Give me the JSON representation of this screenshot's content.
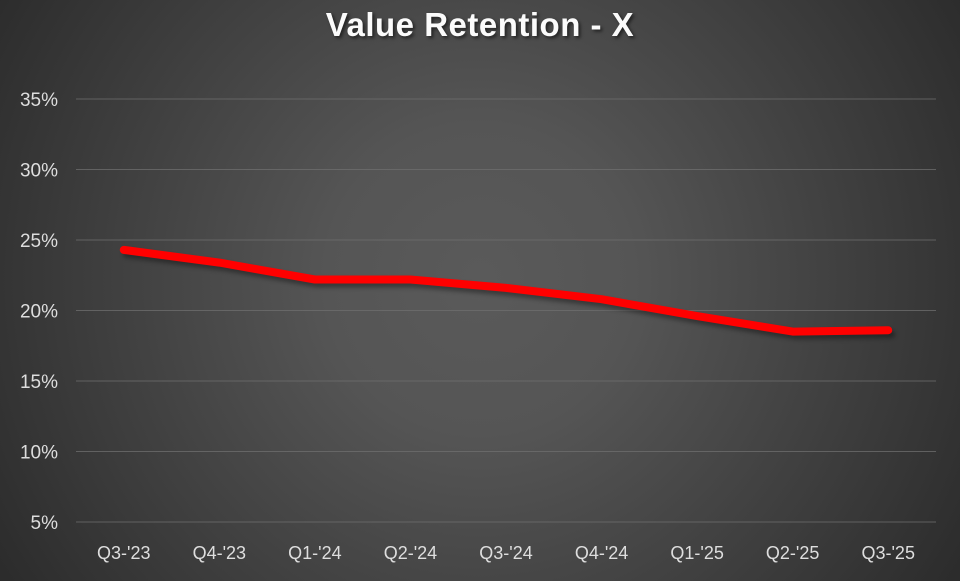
{
  "chart_data": {
    "type": "line",
    "title": "Value Retention - X",
    "categories": [
      "Q3-'23",
      "Q4-'23",
      "Q1-'24",
      "Q2-'24",
      "Q3-'24",
      "Q4-'24",
      "Q1-'25",
      "Q2-'25",
      "Q3-'25"
    ],
    "series": [
      {
        "name": "Value Retention",
        "values": [
          24.3,
          23.4,
          22.2,
          22.2,
          21.6,
          20.8,
          19.6,
          18.5,
          18.6
        ],
        "color": "#ff0000"
      }
    ],
    "xlabel": "",
    "ylabel": "",
    "ylim": [
      5,
      35
    ],
    "ytick_step": 5,
    "ytick_labels": [
      "5%",
      "10%",
      "15%",
      "20%",
      "25%",
      "30%",
      "35%"
    ],
    "grid": "horizontal",
    "legend": "none",
    "colors": {
      "background_center": "#585858",
      "background_edge": "#262626",
      "gridline": "#6f6f6f",
      "tick_label": "#dedede",
      "title": "#fbfbfb",
      "line": "#ff0000"
    }
  }
}
